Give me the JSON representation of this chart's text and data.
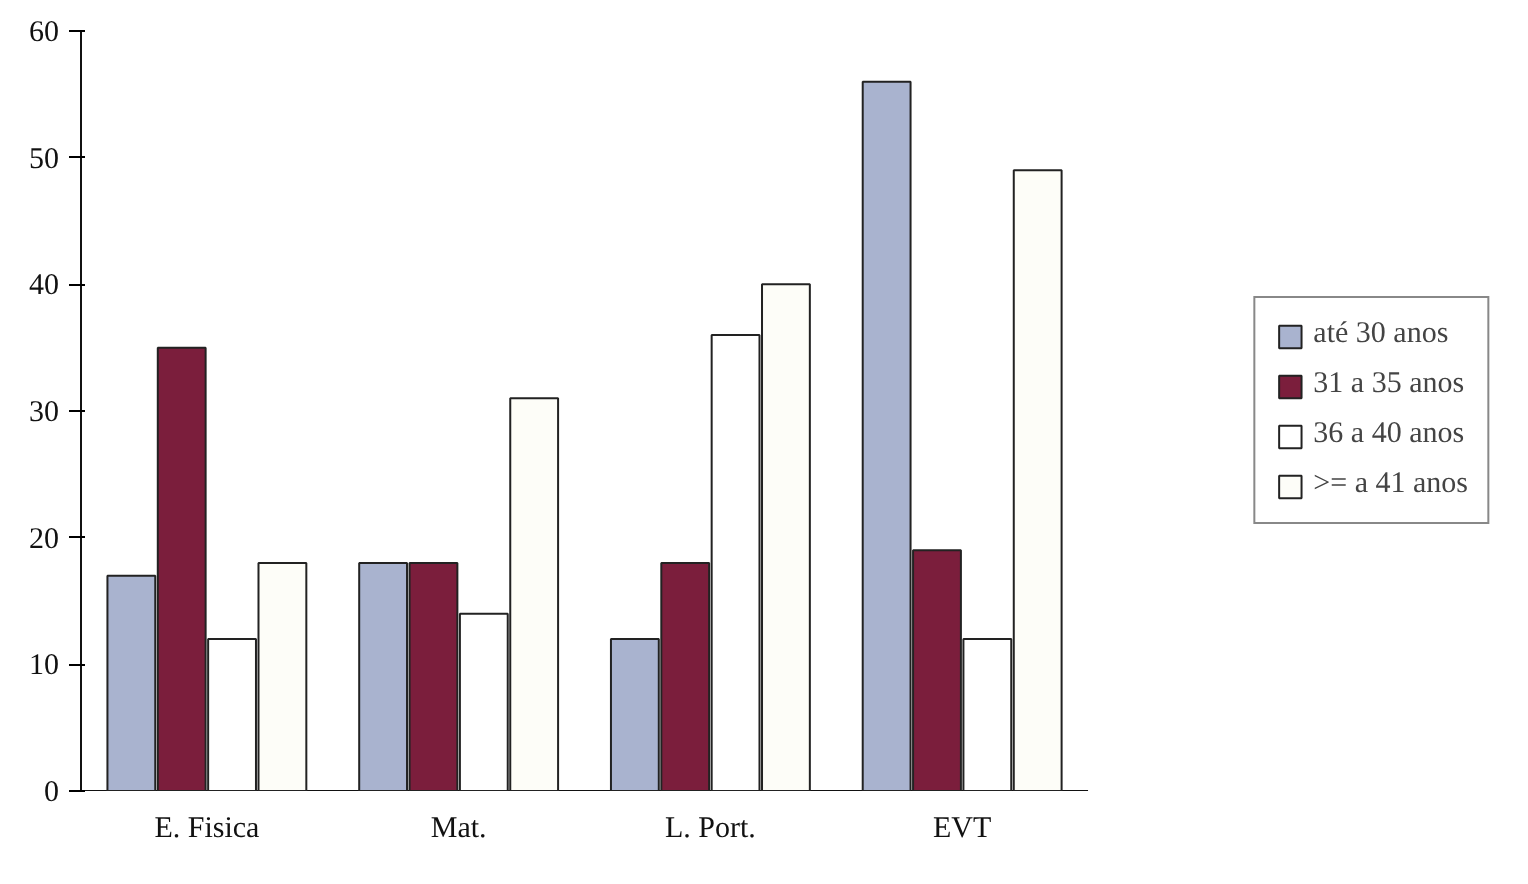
{
  "chart_data": {
    "type": "bar",
    "categories": [
      "E. Fisica",
      "Mat.",
      "L. Port.",
      "EVT"
    ],
    "series": [
      {
        "name": "até 30 anos",
        "color": "#a9b3cf",
        "values": [
          17,
          18,
          12,
          56
        ]
      },
      {
        "name": "31 a 35 anos",
        "color": "#7b1e3c",
        "values": [
          35,
          18,
          18,
          19
        ]
      },
      {
        "name": "36 a 40 anos",
        "color": "#ffffff",
        "values": [
          12,
          14,
          36,
          12
        ]
      },
      {
        "name": ">= a 41 anos",
        "color": "#fdfdf8",
        "values": [
          18,
          31,
          40,
          49
        ]
      }
    ],
    "ylim": [
      0,
      60
    ],
    "yticks": [
      0,
      10,
      20,
      30,
      40,
      50,
      60
    ],
    "grid": false,
    "legend": "right"
  }
}
